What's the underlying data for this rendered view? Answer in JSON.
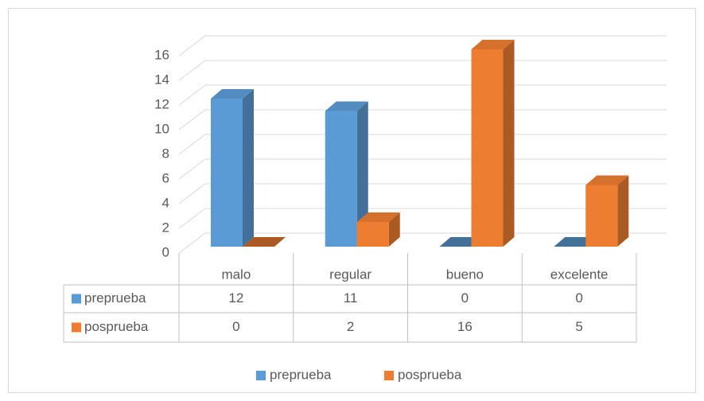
{
  "chart_data": {
    "type": "bar3d",
    "categories": [
      "malo",
      "regular",
      "bueno",
      "excelente"
    ],
    "series": [
      {
        "name": "preprueba",
        "color": "#5b9bd5",
        "values": [
          12,
          11,
          0,
          0
        ]
      },
      {
        "name": "posprueba",
        "color": "#ed7d31",
        "values": [
          0,
          2,
          16,
          5
        ]
      }
    ],
    "ylim": [
      0,
      16
    ],
    "yticks": [
      0,
      2,
      4,
      6,
      8,
      10,
      12,
      14,
      16
    ],
    "grid": true,
    "legend": "bottom",
    "data_table": true
  }
}
